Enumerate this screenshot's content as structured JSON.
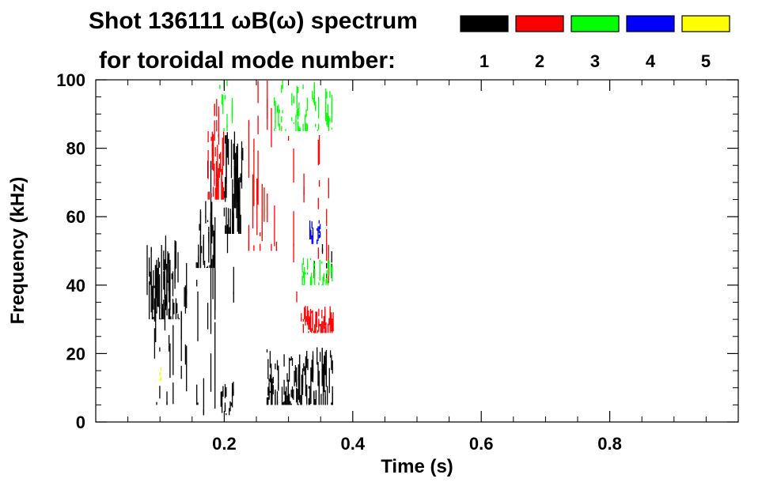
{
  "chart_data": {
    "type": "heatmap",
    "title_line1": "Shot 136111 ωB(ω) spectrum",
    "title_line2": "for toroidal mode number:",
    "xlabel": "Time (s)",
    "ylabel": "Frequency (kHz)",
    "xlim": [
      0.0,
      1.0
    ],
    "ylim": [
      0,
      100
    ],
    "x_ticks": [
      0.2,
      0.4,
      0.6,
      0.8
    ],
    "x_tick_labels": [
      "0.2",
      "0.4",
      "0.6",
      "0.8"
    ],
    "y_ticks": [
      0,
      20,
      40,
      60,
      80,
      100
    ],
    "y_tick_labels": [
      "0",
      "20",
      "40",
      "60",
      "80",
      "100"
    ],
    "legend": [
      {
        "label": "1",
        "color": "#000000"
      },
      {
        "label": "2",
        "color": "#ff0000"
      },
      {
        "label": "3",
        "color": "#00ff00"
      },
      {
        "label": "4",
        "color": "#0000ff"
      },
      {
        "label": "5",
        "color": "#ffff00"
      }
    ],
    "series": [
      {
        "name": "n=1",
        "color": "#000000",
        "regions": [
          {
            "t": [
              0.08,
              0.13
            ],
            "f": [
              30,
              55
            ],
            "density": 0.95
          },
          {
            "t": [
              0.09,
              0.16
            ],
            "f": [
              5,
              50
            ],
            "density": 0.35
          },
          {
            "t": [
              0.155,
              0.185
            ],
            "f": [
              45,
              65
            ],
            "density": 0.9
          },
          {
            "t": [
              0.16,
              0.19
            ],
            "f": [
              2,
              80
            ],
            "density": 0.35
          },
          {
            "t": [
              0.195,
              0.215
            ],
            "f": [
              2,
              12
            ],
            "density": 0.5
          },
          {
            "t": [
              0.2,
              0.23
            ],
            "f": [
              55,
              85
            ],
            "density": 0.85
          },
          {
            "t": [
              0.205,
              0.23
            ],
            "f": [
              30,
              60
            ],
            "density": 0.3
          },
          {
            "t": [
              0.265,
              0.285
            ],
            "f": [
              5,
              22
            ],
            "density": 0.75
          },
          {
            "t": [
              0.29,
              0.37
            ],
            "f": [
              5,
              22
            ],
            "density": 0.95
          },
          {
            "t": [
              0.34,
              0.37
            ],
            "f": [
              42,
              55
            ],
            "density": 0.35
          }
        ]
      },
      {
        "name": "n=2",
        "color": "#ff0000",
        "regions": [
          {
            "t": [
              0.175,
              0.2
            ],
            "f": [
              65,
              85
            ],
            "density": 0.9
          },
          {
            "t": [
              0.185,
              0.2
            ],
            "f": [
              80,
              100
            ],
            "density": 0.3
          },
          {
            "t": [
              0.235,
              0.29
            ],
            "f": [
              50,
              100
            ],
            "density": 0.35
          },
          {
            "t": [
              0.32,
              0.37
            ],
            "f": [
              26,
              34
            ],
            "density": 0.9
          },
          {
            "t": [
              0.3,
              0.37
            ],
            "f": [
              35,
              85
            ],
            "density": 0.2
          }
        ]
      },
      {
        "name": "n=3",
        "color": "#00ff00",
        "regions": [
          {
            "t": [
              0.19,
              0.215
            ],
            "f": [
              85,
              100
            ],
            "density": 0.4
          },
          {
            "t": [
              0.27,
              0.37
            ],
            "f": [
              85,
              100
            ],
            "density": 0.45
          },
          {
            "t": [
              0.32,
              0.37
            ],
            "f": [
              40,
              48
            ],
            "density": 0.6
          }
        ]
      },
      {
        "name": "n=4",
        "color": "#0000ff",
        "regions": [
          {
            "t": [
              0.33,
              0.35
            ],
            "f": [
              52,
              60
            ],
            "density": 0.5
          }
        ]
      },
      {
        "name": "n=5",
        "color": "#ffff00",
        "regions": [
          {
            "t": [
              0.1,
              0.115
            ],
            "f": [
              12,
              16
            ],
            "density": 0.15
          }
        ]
      }
    ]
  }
}
